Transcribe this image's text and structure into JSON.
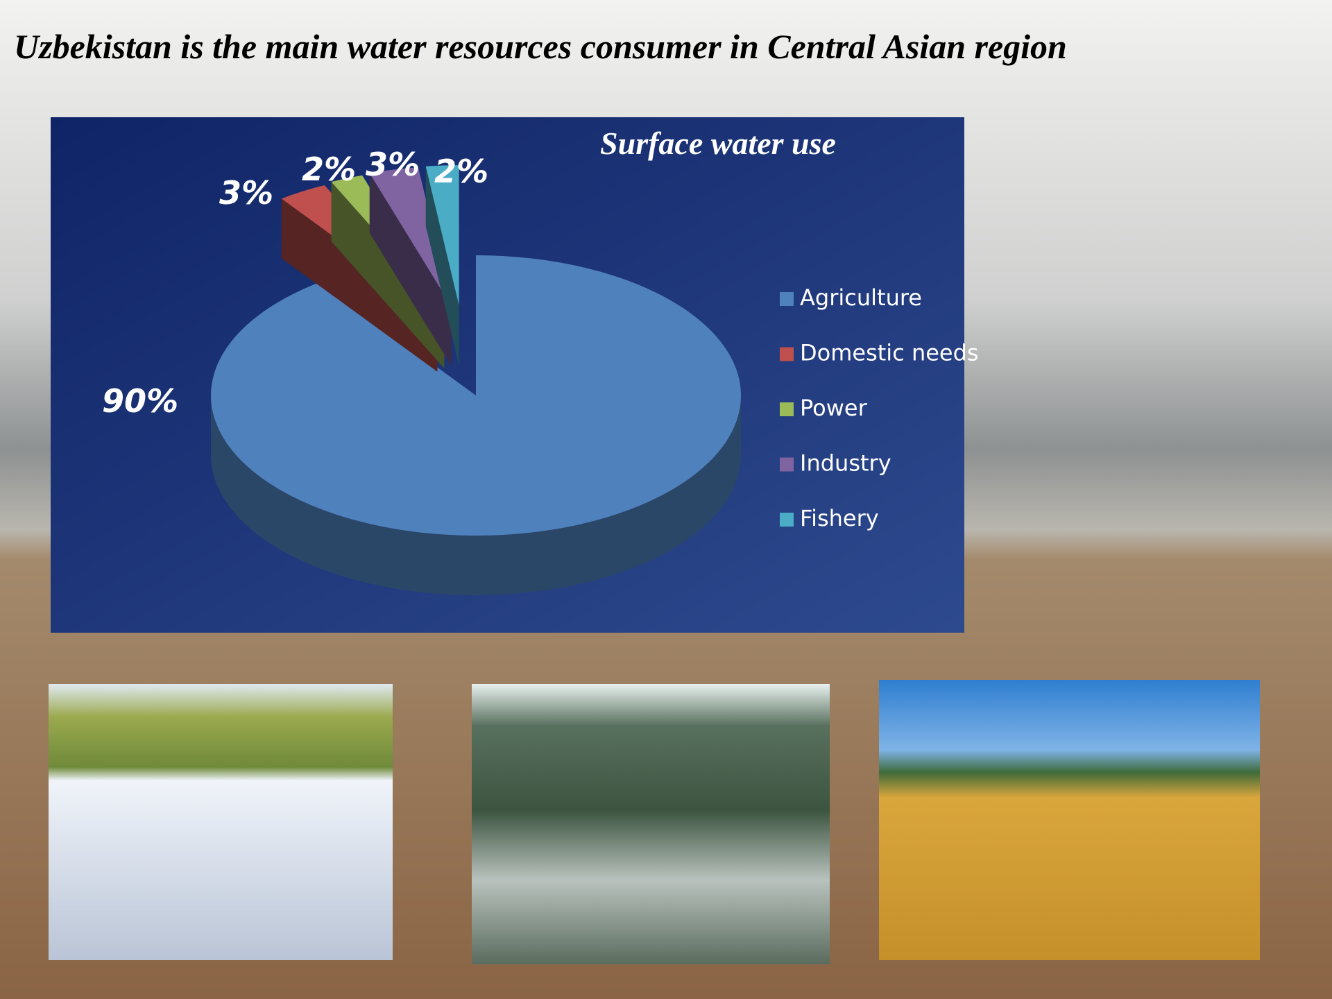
{
  "title": "Uzbekistan is the main water resources consumer in Central Asian region",
  "chart_data": {
    "type": "pie",
    "title": "Surface water use",
    "categories": [
      "Agriculture",
      "Domestic needs",
      "Power",
      "Industry",
      "Fishery"
    ],
    "values": [
      90,
      3,
      2,
      3,
      2
    ],
    "value_labels": [
      "90%",
      "3%",
      "2%",
      "3%",
      "2%"
    ],
    "colors": [
      "#4f81bd",
      "#c0504d",
      "#9bbb59",
      "#8064a2",
      "#4bacc6"
    ],
    "legend": "right"
  }
}
